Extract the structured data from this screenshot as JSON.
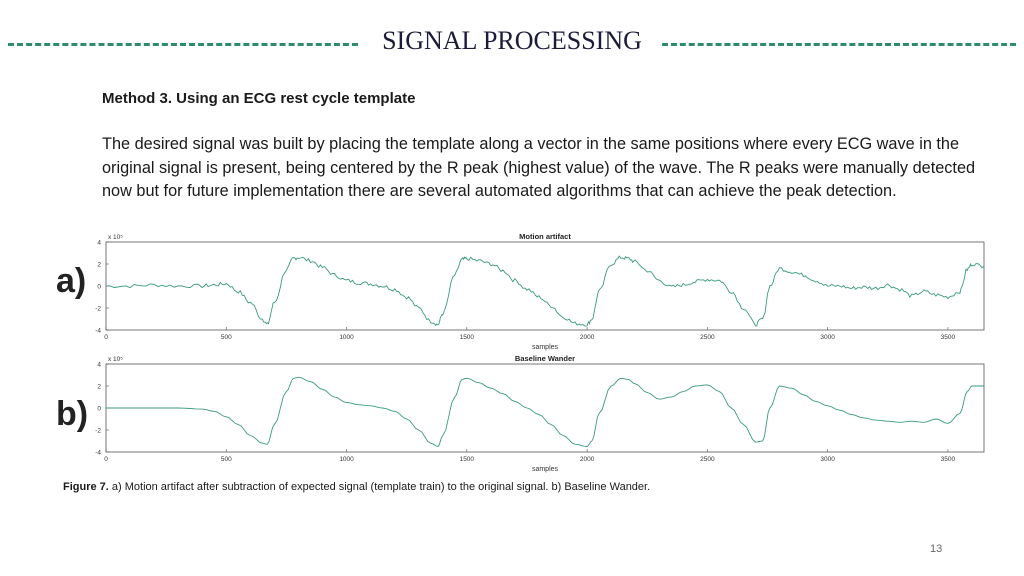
{
  "slide": {
    "title": "SIGNAL PROCESSING",
    "method_heading": "Method 3. Using an ECG rest cycle template",
    "paragraph": "The desired signal was built by placing the template along a vector in the same positions where every ECG wave in the original signal is present, being centered by the R peak (highest value) of the wave. The R peaks were manually detected now but for future implementation there are several automated algorithms that can achieve the peak detection.",
    "caption_label": "Figure 7.",
    "caption_text": " a) Motion artifact after subtraction of expected signal (template train) to the original signal. b) Baseline Wander.",
    "page_number": "13"
  },
  "panels": [
    {
      "letter": "a)"
    },
    {
      "letter": "b)"
    }
  ],
  "colors": {
    "accent": "#2e8b6e",
    "line": "#3a9a7a"
  },
  "chart_data": [
    {
      "type": "line",
      "title": "Motion artifact",
      "xlabel": "samples",
      "ylabel": "",
      "exponent_label": "x 10⁵",
      "xlim": [
        0,
        3650
      ],
      "ylim": [
        -4,
        4
      ],
      "xticks": [
        0,
        500,
        1000,
        1500,
        2000,
        2500,
        3000,
        3500
      ],
      "yticks": [
        4,
        2,
        0,
        -2,
        -4
      ],
      "noisy": true,
      "series": [
        {
          "name": "motion artifact",
          "x": [
            0,
            100,
            200,
            300,
            400,
            450,
            500,
            550,
            600,
            650,
            670,
            700,
            750,
            780,
            800,
            850,
            900,
            950,
            1000,
            1050,
            1100,
            1150,
            1200,
            1250,
            1300,
            1350,
            1380,
            1400,
            1450,
            1480,
            1500,
            1550,
            1600,
            1650,
            1700,
            1750,
            1800,
            1850,
            1900,
            1950,
            2000,
            2020,
            2050,
            2100,
            2140,
            2170,
            2200,
            2250,
            2300,
            2350,
            2400,
            2450,
            2500,
            2550,
            2600,
            2650,
            2700,
            2730,
            2760,
            2800,
            2850,
            2900,
            2950,
            3000,
            3050,
            3100,
            3150,
            3200,
            3250,
            3300,
            3350,
            3400,
            3450,
            3500,
            3550,
            3580,
            3600,
            3650
          ],
          "y": [
            0,
            0,
            0.1,
            0,
            0,
            0.1,
            0.2,
            -0.5,
            -1.5,
            -3.0,
            -3.5,
            -1.5,
            1.5,
            2.5,
            2.6,
            2.3,
            1.7,
            1.0,
            0.5,
            0.3,
            0.2,
            0,
            -0.3,
            -1.0,
            -2.0,
            -3.2,
            -3.5,
            -2.5,
            1.0,
            2.4,
            2.5,
            2.3,
            2.0,
            1.4,
            0.5,
            -0.3,
            -1.0,
            -1.8,
            -2.8,
            -3.4,
            -3.5,
            -3.0,
            -0.5,
            2.0,
            2.6,
            2.5,
            2.2,
            1.4,
            0.5,
            -0.1,
            0.1,
            0.4,
            0.6,
            0.5,
            -0.5,
            -2.0,
            -3.5,
            -3.0,
            0.0,
            1.6,
            1.3,
            1.0,
            0.5,
            0,
            0,
            -0.2,
            -0.1,
            -0.2,
            0.1,
            -0.3,
            -0.9,
            -0.5,
            -0.8,
            -1.0,
            -0.5,
            1.5,
            2.0,
            1.8
          ]
        }
      ]
    },
    {
      "type": "line",
      "title": "Baseline Wander",
      "xlabel": "samples",
      "ylabel": "",
      "exponent_label": "x 10⁵",
      "xlim": [
        0,
        3650
      ],
      "ylim": [
        -4,
        4
      ],
      "xticks": [
        0,
        500,
        1000,
        1500,
        2000,
        2500,
        3000,
        3500
      ],
      "yticks": [
        4,
        2,
        0,
        -2,
        -4
      ],
      "noisy": false,
      "series": [
        {
          "name": "baseline wander",
          "x": [
            0,
            100,
            200,
            300,
            400,
            450,
            500,
            550,
            600,
            650,
            670,
            700,
            750,
            780,
            800,
            850,
            900,
            950,
            1000,
            1050,
            1100,
            1150,
            1200,
            1250,
            1300,
            1350,
            1380,
            1400,
            1450,
            1480,
            1500,
            1550,
            1600,
            1650,
            1700,
            1750,
            1800,
            1850,
            1900,
            1950,
            2000,
            2020,
            2050,
            2100,
            2140,
            2170,
            2200,
            2250,
            2300,
            2350,
            2400,
            2450,
            2500,
            2550,
            2600,
            2650,
            2700,
            2730,
            2760,
            2800,
            2850,
            2900,
            2950,
            3000,
            3050,
            3100,
            3150,
            3200,
            3250,
            3300,
            3350,
            3400,
            3450,
            3500,
            3550,
            3580,
            3600,
            3650
          ],
          "y": [
            0,
            0,
            0,
            0,
            -0.1,
            -0.3,
            -0.8,
            -1.5,
            -2.5,
            -3.2,
            -3.3,
            -1.5,
            1.5,
            2.7,
            2.8,
            2.4,
            1.7,
            1.0,
            0.5,
            0.3,
            0.2,
            0,
            -0.3,
            -1.0,
            -2.0,
            -3.2,
            -3.5,
            -2.5,
            1.0,
            2.6,
            2.7,
            2.3,
            1.8,
            1.3,
            0.6,
            0,
            -0.6,
            -1.5,
            -2.5,
            -3.3,
            -3.5,
            -3.0,
            -0.5,
            2.0,
            2.7,
            2.6,
            2.2,
            1.4,
            0.8,
            1.0,
            1.5,
            2.0,
            2.1,
            1.5,
            0,
            -1.5,
            -3.1,
            -3.0,
            0.0,
            2.0,
            1.8,
            1.2,
            0.6,
            0.2,
            -0.2,
            -0.6,
            -0.9,
            -1.1,
            -1.2,
            -1.3,
            -1.2,
            -1.3,
            -1.0,
            -1.4,
            -0.5,
            1.5,
            2.0,
            2.0
          ]
        }
      ]
    }
  ]
}
